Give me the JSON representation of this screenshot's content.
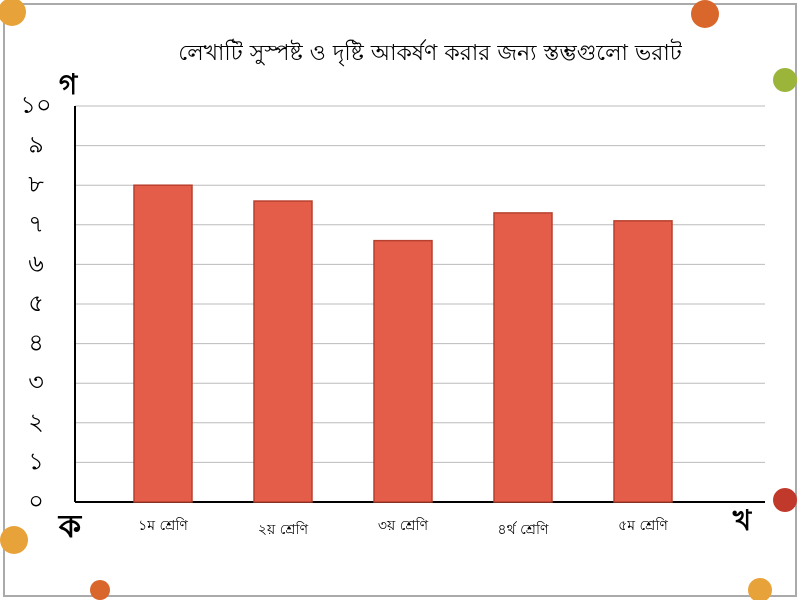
{
  "chart_data": {
    "type": "bar",
    "title": "লেখাটি সুস্পষ্ট ও দৃষ্টি আকর্ষণ করার জন্য স্তম্ভগুলো ভরাট",
    "y_label": "গ",
    "x_label": "খ",
    "origin_label": "ক",
    "categories": [
      "১ম শ্রেণি",
      "২য় শ্রেণি",
      "৩য় শ্রেণি",
      "৪র্থ শ্রেণি",
      "৫ম শ্রেণি"
    ],
    "values": [
      8,
      7.6,
      6.6,
      7.3,
      7.1
    ],
    "color": "#e35d48",
    "ylim": [
      0,
      10
    ],
    "yticks": [
      {
        "value": 0,
        "label": "০"
      },
      {
        "value": 1,
        "label": "১"
      },
      {
        "value": 2,
        "label": "২"
      },
      {
        "value": 3,
        "label": "৩"
      },
      {
        "value": 4,
        "label": "৪"
      },
      {
        "value": 5,
        "label": "৫"
      },
      {
        "value": 6,
        "label": "৬"
      },
      {
        "value": 7,
        "label": "৭"
      },
      {
        "value": 8,
        "label": "৮"
      },
      {
        "value": 9,
        "label": "৯"
      },
      {
        "value": 10,
        "label": "১০"
      }
    ],
    "grid": true
  }
}
